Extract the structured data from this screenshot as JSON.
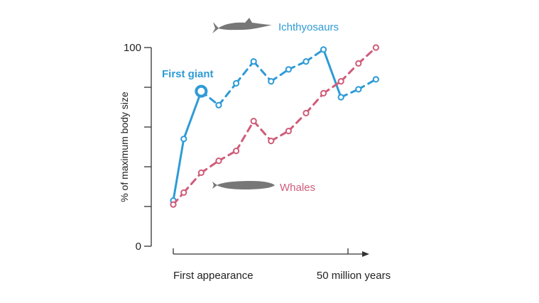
{
  "chart_data": {
    "type": "line",
    "title": "",
    "xlabel": "",
    "ylabel": "% of maximum body size",
    "ylim": [
      0,
      100
    ],
    "xlim": [
      0,
      56
    ],
    "y_tick_values": [
      0,
      20,
      40,
      60,
      80,
      100
    ],
    "y_tick_labels": [
      "0",
      "",
      "",
      "",
      "",
      "100"
    ],
    "x_tick_labels": [
      {
        "value": 0,
        "label": "First appearance"
      },
      {
        "value": 50,
        "label": "50 million years"
      }
    ],
    "grid": false,
    "series": [
      {
        "name": "Ichthyosaurs",
        "color": "#2e9bd6",
        "icon": "ichthyosaur-silhouette-icon",
        "x": [
          0,
          3,
          8,
          13,
          18,
          23,
          28,
          33,
          38,
          43,
          48,
          53,
          58
        ],
        "y": [
          23,
          54,
          78,
          71,
          82,
          93,
          83,
          89,
          93,
          99,
          75,
          79,
          84
        ],
        "segments": [
          "solid",
          "solid",
          "dashed",
          "dashed",
          "dashed",
          "dashed",
          "dashed",
          "dashed",
          "dashed",
          "solid",
          "dashed",
          "dashed"
        ]
      },
      {
        "name": "Whales",
        "color": "#cf5c79",
        "icon": "whale-silhouette-icon",
        "x": [
          0,
          3,
          8,
          13,
          18,
          23,
          28,
          33,
          38,
          43,
          48,
          53,
          58
        ],
        "y": [
          21,
          27,
          37,
          43,
          48,
          63,
          53,
          58,
          67,
          77,
          83,
          92,
          100
        ],
        "segments": [
          "dashed",
          "dashed",
          "dashed",
          "dashed",
          "dashed",
          "dashed",
          "dashed",
          "dashed",
          "dashed",
          "dashed",
          "dashed",
          "dashed"
        ]
      }
    ],
    "annotations": [
      {
        "text": "First giant",
        "series": "Ichthyosaurs",
        "point_index": 2,
        "color": "#2e9bd6"
      }
    ]
  }
}
